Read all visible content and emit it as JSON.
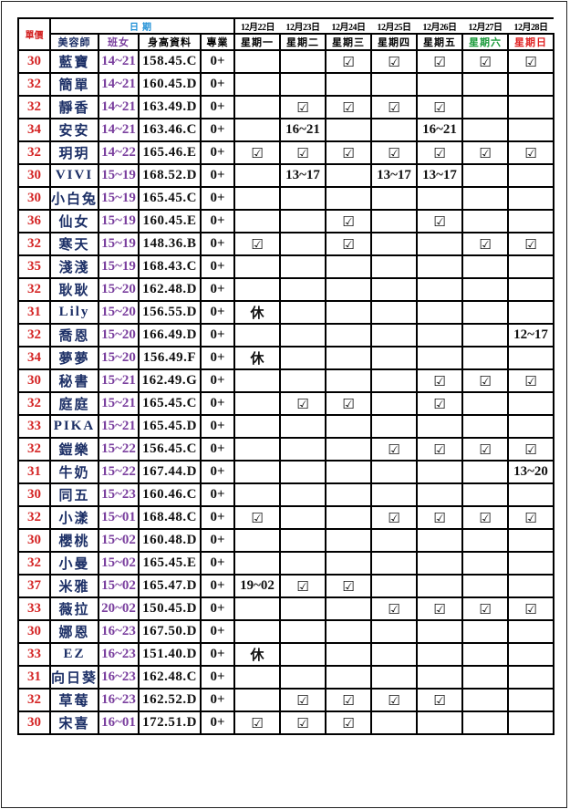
{
  "header": {
    "price_label": "單價",
    "date_label": "日期",
    "columns": [
      "美容師",
      "班女",
      "身高資料",
      "專業"
    ],
    "dates": [
      "12月22日",
      "12月23日",
      "12月24日",
      "12月25日",
      "12月26日",
      "12月27日",
      "12月28日"
    ],
    "weekdays": [
      "星期一",
      "星期二",
      "星期三",
      "星期四",
      "星期五",
      "星期六",
      "星期日"
    ]
  },
  "colors": {
    "price": "#d42424",
    "name": "#1c2f66",
    "shift": "#7a3f9e",
    "date_header": "#1e8fd6",
    "saturday": "#1a9a3a",
    "sunday": "#e02020"
  },
  "rows": [
    {
      "price": "30",
      "name": "藍寶",
      "shift": "14~21",
      "height": "158.45.C",
      "pro": "0+",
      "days": [
        "",
        "",
        "☑",
        "☑",
        "☑",
        "☑",
        "☑"
      ]
    },
    {
      "price": "32",
      "name": "簡單",
      "shift": "14~21",
      "height": "160.45.D",
      "pro": "0+",
      "days": [
        "",
        "",
        "",
        "",
        "",
        "",
        ""
      ]
    },
    {
      "price": "32",
      "name": "靜香",
      "shift": "14~21",
      "height": "163.49.D",
      "pro": "0+",
      "days": [
        "",
        "☑",
        "☑",
        "☑",
        "☑",
        "",
        ""
      ]
    },
    {
      "price": "34",
      "name": "安安",
      "shift": "14~21",
      "height": "163.46.C",
      "pro": "0+",
      "days": [
        "",
        "16~21",
        "",
        "",
        "16~21",
        "",
        ""
      ]
    },
    {
      "price": "32",
      "name": "玥玥",
      "shift": "14~22",
      "height": "165.46.E",
      "pro": "0+",
      "days": [
        "☑",
        "☑",
        "☑",
        "☑",
        "☑",
        "☑",
        "☑"
      ]
    },
    {
      "price": "30",
      "name": "VIVI",
      "shift": "15~19",
      "height": "168.52.D",
      "pro": "0+",
      "days": [
        "",
        "13~17",
        "",
        "13~17",
        "13~17",
        "",
        ""
      ]
    },
    {
      "price": "30",
      "name": "小白兔",
      "shift": "15~19",
      "height": "165.45.C",
      "pro": "0+",
      "days": [
        "",
        "",
        "",
        "",
        "",
        "",
        ""
      ]
    },
    {
      "price": "36",
      "name": "仙女",
      "shift": "15~19",
      "height": "160.45.E",
      "pro": "0+",
      "days": [
        "",
        "",
        "☑",
        "",
        "☑",
        "",
        ""
      ]
    },
    {
      "price": "32",
      "name": "寒天",
      "shift": "15~19",
      "height": "148.36.B",
      "pro": "0+",
      "days": [
        "☑",
        "",
        "☑",
        "",
        "",
        "☑",
        "☑"
      ]
    },
    {
      "price": "35",
      "name": "淺淺",
      "shift": "15~19",
      "height": "168.43.C",
      "pro": "0+",
      "days": [
        "",
        "",
        "",
        "",
        "",
        "",
        ""
      ]
    },
    {
      "price": "32",
      "name": "耿耿",
      "shift": "15~20",
      "height": "162.48.D",
      "pro": "0+",
      "days": [
        "",
        "",
        "",
        "",
        "",
        "",
        ""
      ]
    },
    {
      "price": "31",
      "name": "Lily",
      "shift": "15~20",
      "height": "156.55.D",
      "pro": "0+",
      "days": [
        "休",
        "",
        "",
        "",
        "",
        "",
        ""
      ]
    },
    {
      "price": "32",
      "name": "喬恩",
      "shift": "15~20",
      "height": "166.49.D",
      "pro": "0+",
      "days": [
        "",
        "",
        "",
        "",
        "",
        "",
        "12~17"
      ]
    },
    {
      "price": "34",
      "name": "夢夢",
      "shift": "15~20",
      "height": "156.49.F",
      "pro": "0+",
      "days": [
        "休",
        "",
        "",
        "",
        "",
        "",
        ""
      ]
    },
    {
      "price": "30",
      "name": "秘書",
      "shift": "15~21",
      "height": "162.49.G",
      "pro": "0+",
      "days": [
        "",
        "",
        "",
        "",
        "☑",
        "☑",
        "☑"
      ]
    },
    {
      "price": "32",
      "name": "庭庭",
      "shift": "15~21",
      "height": "165.45.C",
      "pro": "0+",
      "days": [
        "",
        "☑",
        "☑",
        "",
        "☑",
        "",
        ""
      ]
    },
    {
      "price": "33",
      "name": "PIKA",
      "shift": "15~21",
      "height": "165.45.D",
      "pro": "0+",
      "days": [
        "",
        "",
        "",
        "",
        "",
        "",
        ""
      ]
    },
    {
      "price": "32",
      "name": "鎧樂",
      "shift": "15~22",
      "height": "156.45.C",
      "pro": "0+",
      "days": [
        "",
        "",
        "",
        "☑",
        "☑",
        "☑",
        "☑"
      ]
    },
    {
      "price": "31",
      "name": "牛奶",
      "shift": "15~22",
      "height": "167.44.D",
      "pro": "0+",
      "days": [
        "",
        "",
        "",
        "",
        "",
        "",
        "13~20"
      ]
    },
    {
      "price": "30",
      "name": "同五",
      "shift": "15~23",
      "height": "160.46.C",
      "pro": "0+",
      "days": [
        "",
        "",
        "",
        "",
        "",
        "",
        ""
      ]
    },
    {
      "price": "32",
      "name": "小漾",
      "shift": "15~01",
      "height": "168.48.C",
      "pro": "0+",
      "days": [
        "☑",
        "",
        "",
        "☑",
        "☑",
        "☑",
        "☑"
      ]
    },
    {
      "price": "30",
      "name": "櫻桃",
      "shift": "15~02",
      "height": "160.48.D",
      "pro": "0+",
      "days": [
        "",
        "",
        "",
        "",
        "",
        "",
        ""
      ]
    },
    {
      "price": "32",
      "name": "小曼",
      "shift": "15~02",
      "height": "165.45.E",
      "pro": "0+",
      "days": [
        "",
        "",
        "",
        "",
        "",
        "",
        ""
      ]
    },
    {
      "price": "37",
      "name": "米雅",
      "shift": "15~02",
      "height": "165.47.D",
      "pro": "0+",
      "days": [
        "19~02",
        "☑",
        "☑",
        "",
        "",
        "",
        ""
      ]
    },
    {
      "price": "33",
      "name": "薇拉",
      "shift": "20~02",
      "height": "150.45.D",
      "pro": "0+",
      "days": [
        "",
        "",
        "",
        "☑",
        "☑",
        "☑",
        "☑"
      ]
    },
    {
      "price": "30",
      "name": "娜恩",
      "shift": "16~23",
      "height": "167.50.D",
      "pro": "0+",
      "days": [
        "",
        "",
        "",
        "",
        "",
        "",
        ""
      ]
    },
    {
      "price": "33",
      "name": "EZ",
      "shift": "16~23",
      "height": "151.40.D",
      "pro": "0+",
      "days": [
        "休",
        "",
        "",
        "",
        "",
        "",
        ""
      ]
    },
    {
      "price": "31",
      "name": "向日葵",
      "shift": "16~23",
      "height": "162.48.C",
      "pro": "0+",
      "days": [
        "",
        "",
        "",
        "",
        "",
        "",
        ""
      ]
    },
    {
      "price": "32",
      "name": "草莓",
      "shift": "16~23",
      "height": "162.52.D",
      "pro": "0+",
      "days": [
        "",
        "☑",
        "☑",
        "☑",
        "☑",
        "",
        ""
      ]
    },
    {
      "price": "30",
      "name": "宋喜",
      "shift": "16~01",
      "height": "172.51.D",
      "pro": "0+",
      "days": [
        "☑",
        "☑",
        "☑",
        "",
        "",
        "",
        ""
      ]
    }
  ]
}
